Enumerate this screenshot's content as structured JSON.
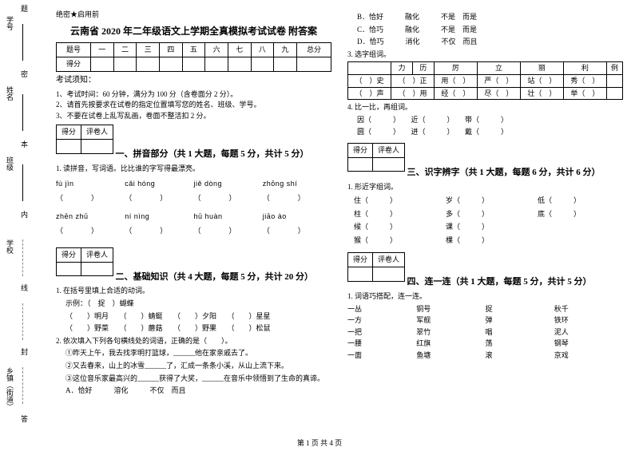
{
  "secret": "绝密★启用前",
  "title": "云南省 2020 年二年级语文上学期全真模拟考试试卷 附答案",
  "scoreHeader": [
    "题号",
    "一",
    "二",
    "三",
    "四",
    "五",
    "六",
    "七",
    "八",
    "九",
    "总分"
  ],
  "scoreRow": "得分",
  "noticeH": "考试须知：",
  "notice1": "1、考试时间：60 分钟，满分为 100 分（含卷面分 2 分）。",
  "notice2": "2、请首先按要求在试卷的指定位置填写您的姓名、班级、学号。",
  "notice3": "3、不要在试卷上乱写乱画，卷面不整洁扣 2 分。",
  "sb1": "得分",
  "sb2": "评卷人",
  "sec1": "一、拼音部分（共 1 大题，每题 5 分，共计 5 分）",
  "q1": "1. 读拼音，写词语。比比谁的字写得最漂亮。",
  "py": [
    [
      "fù  jìn",
      "cǎi  hóng",
      "jiě  dòng",
      "zhōng  shí"
    ],
    [
      "zhēn  zhū",
      "ní  nìng",
      "hū  huàn",
      "jiāo  ào"
    ]
  ],
  "sec2": "二、基础知识（共 4 大题，每题 5 分，共计 20 分）",
  "q2_1": "1. 在括号里填上合适的动词。",
  "q2_1ex": "示例：（　捉　）蝴蝶",
  "q2_1a": "（　　）明月　　（　　）蜻蜓　　（　　）夕阳　　（　　）星星",
  "q2_1b": "（　　）野菜　　（　　）蘑菇　　（　　）野果　　（　　）松鼠",
  "q2_2": "2. 依次填入下列各句横线处的词语，正确的是（　　）。",
  "q2_2a": "①昨天上午，我去找李明打篮球，______他在家亲戚去了。",
  "q2_2b": "②又去春来，山上的冰雪______了，汇成一条条小溪，从山上流下来。",
  "q2_2c": "③这位音乐家最高兴的______获得了大奖，______在音乐中领悟到了生命的真谛。",
  "optA": "A．恰好　　　溶化　　　不仅　而且",
  "optB": "B．恰好　　　融化　　　不是　而是",
  "optC": "C．恰巧　　　融化　　　不是　而是",
  "optD": "D．恰巧　　　消化　　　不仅　而且",
  "q3": "3. 选字组词。",
  "chars": [
    "力",
    "历",
    "厉",
    "立",
    "丽",
    "利",
    "例"
  ],
  "q3r1": [
    "（　）史",
    "（　）正",
    "用（　）",
    "严（　）",
    "站（　）",
    "秀（　）"
  ],
  "q3r2": [
    "（　）声",
    "（　）用",
    "经（　）",
    "尽（　）",
    "壮（　）",
    "举（　）"
  ],
  "q4": "4. 比一比，再组词。",
  "q4a": "因（　　　）　　近（　　　）　　带（　　　）",
  "q4b": "圆（　　　）　　进（　　　）　　戴（　　　）",
  "sec3": "三、识字辨字（共 1 大题，每题 6 分，共计 6 分）",
  "q3_1": "1. 形近字组词。",
  "pair": [
    [
      "住（",
      "岁（",
      "低（"
    ],
    [
      "柱（",
      "多（",
      "底（"
    ],
    [
      "候（",
      "课（",
      ""
    ],
    [
      "猴（",
      "棵（",
      ""
    ]
  ],
  "sec4": "四、连一连（共 1 大题，每题 5 分，共计 5 分）",
  "q4_1": "1. 词语巧搭配，连一连。",
  "match": [
    [
      "一丛",
      "铜号",
      "捉",
      "秋千"
    ],
    [
      "一方",
      "军舰",
      "弹",
      "铁环"
    ],
    [
      "一把",
      "翠竹",
      "唱",
      "泥人"
    ],
    [
      "一腰",
      "红旗",
      "荡",
      "钢琴"
    ],
    [
      "一面",
      "鱼塘",
      "滚",
      "京戏"
    ]
  ],
  "footer": "第 1 页 共 4 页",
  "mLabels": [
    "学号",
    "姓名",
    "班级",
    "学校",
    "乡镇（街道）"
  ],
  "mHints": [
    "题",
    "密",
    "本",
    "内",
    "线",
    "封",
    "答"
  ]
}
